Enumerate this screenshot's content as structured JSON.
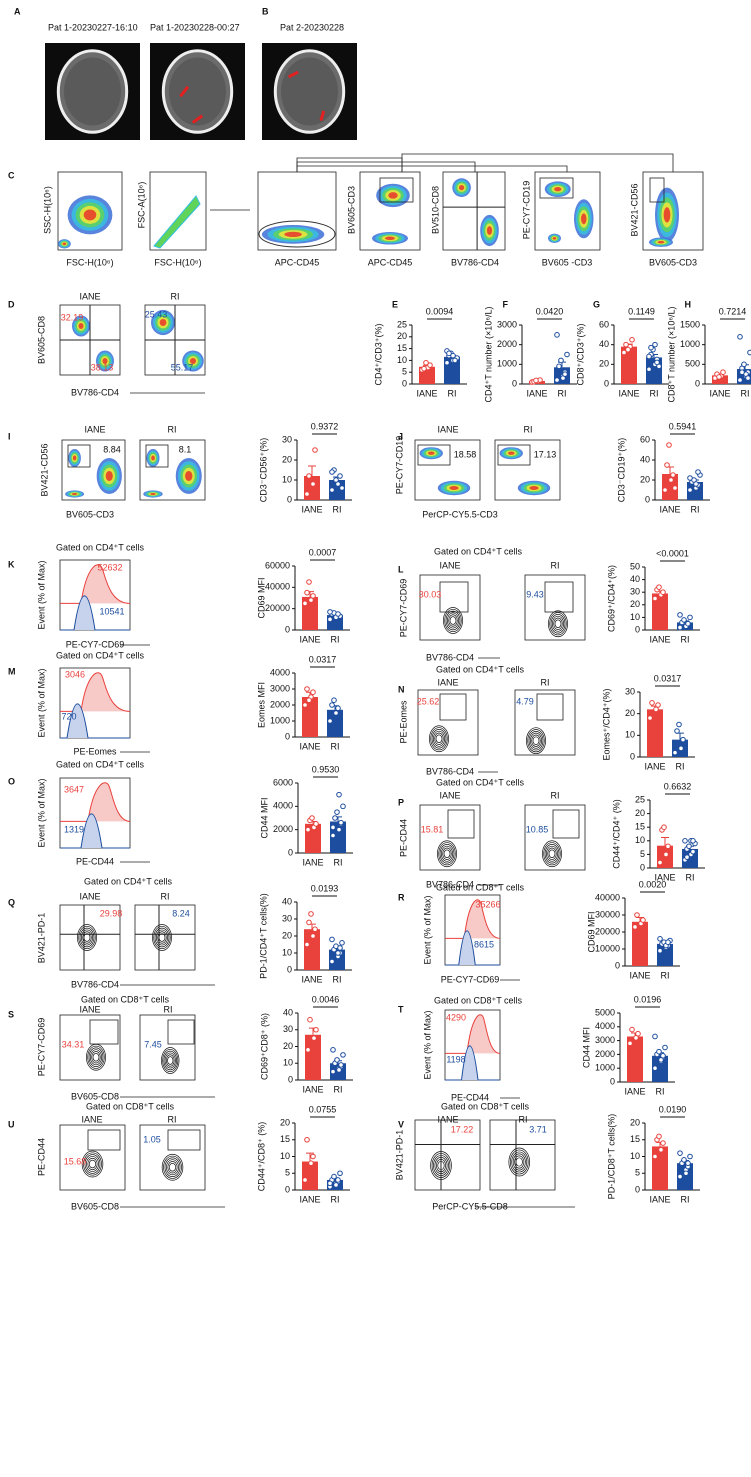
{
  "panels": {
    "A": [
      "A",
      "Pat 1-20230227-16:10",
      "Pat 1-20230228-00:27"
    ],
    "B": [
      "B",
      "Pat 2-20230228"
    ],
    "C": [
      "C",
      "SSC-H(10⁶)",
      "FSC-H(10⁶)",
      "FSC-A(10⁶)",
      "FSC-H(10⁶)",
      "APC-CD45",
      "BV605-CD3",
      "APC-CD45",
      "BV510-CD8",
      "BV786-CD4",
      "PE-CY7-CD19",
      "BV605 -CD3",
      "BV421-CD56",
      "BV605-CD3"
    ],
    "D": [
      "D",
      "IANE",
      "RI",
      "BV605-CD8",
      "BV786-CD4",
      "32.19",
      "38.13",
      "25.43",
      "55.17"
    ],
    "I": [
      "I",
      "IANE",
      "RI",
      "8.84",
      "8.1",
      "BV421-CD56",
      "BV605-CD3"
    ],
    "J": [
      "J",
      "IANE",
      "RI",
      "18.58",
      "17.13",
      "PE-CY7-CD19",
      "PerCP-CY5.5-CD3"
    ],
    "K": [
      "K",
      "Gated on CD4⁺T cells",
      "52632",
      "10541",
      "Event (% of Max)",
      "PE-CY7-CD69"
    ],
    "L": [
      "L",
      "Gated on CD4⁺T cells",
      "IANE",
      "RI",
      "30.03",
      "9.43",
      "PE-CY7-CD69",
      "BV786-CD4"
    ],
    "M": [
      "M",
      "Gated on CD4⁺T cells",
      "3046",
      "720",
      "Event (% of Max)",
      "PE-Eomes"
    ],
    "N": [
      "N",
      "Gated on CD4⁺T cells",
      "IANE",
      "RI",
      "25.62",
      "4.79",
      "PE-Eomes",
      "BV786-CD4"
    ],
    "O": [
      "O",
      "Gated on CD4⁺T cells",
      "3647",
      "1319",
      "Event (% of Max)",
      "PE-CD44"
    ],
    "P": [
      "P",
      "Gated on CD4⁺T cells",
      "IANE",
      "RI",
      "15.81",
      "10.85",
      "PE-CD44",
      "BV786-CD4"
    ],
    "Q": [
      "Q",
      "Gated on CD4⁺T cells",
      "IANE",
      "RI",
      "29.98",
      "8.24",
      "BV421-PD-1",
      "BV786-CD4"
    ],
    "R": [
      "R",
      "Gated on CD8⁺T cells",
      "35266",
      "8615",
      "Event (% of Max)",
      "PE-CY7-CD69"
    ],
    "S": [
      "S",
      "Gated on CD8⁺T cells",
      "IANE",
      "RI",
      "34.31",
      "7.45",
      "PE-CY7-CD69",
      "BV605-CD8"
    ],
    "T": [
      "T",
      "Gated on CD8⁺T cells",
      "4290",
      "1198",
      "Event (% of Max)",
      "PE-CD44"
    ],
    "U": [
      "U",
      "Gated on CD8⁺T cells",
      "IANE",
      "RI",
      "15.68",
      "1.05",
      "PE-CD44",
      "BV605-CD8"
    ],
    "V": [
      "V",
      "Gated on CD8⁺T cells",
      "IANE",
      "RI",
      "17.22",
      "3.71",
      "BV421-PD-1",
      "PerCP-CY5.5-CD8"
    ]
  },
  "chart_data": [
    {
      "type": "bar",
      "panel": "E",
      "categories": [
        "IANE",
        "RI"
      ],
      "ylabel": "CD4⁺/CD3⁺(%)",
      "p_value": "0.0094",
      "colors": [
        "#e9423d",
        "#1d4d9e"
      ],
      "values": [
        7.3,
        11.5
      ],
      "errors": [
        0.6,
        0.5
      ],
      "points": [
        [
          6,
          7,
          8,
          6.5,
          9
        ],
        [
          9,
          10,
          11,
          12,
          13,
          11,
          14,
          12,
          10,
          13
        ]
      ],
      "ylim": [
        0,
        25
      ],
      "yticks": [
        0,
        5,
        10,
        15,
        20,
        25
      ]
    },
    {
      "type": "bar",
      "panel": "F",
      "categories": [
        "IANE",
        "RI"
      ],
      "ylabel": "CD4⁺T number (×10⁶/L)",
      "p_value": "0.0420",
      "colors": [
        "#e9423d",
        "#1d4d9e"
      ],
      "values": [
        150,
        850
      ],
      "errors": [
        20,
        260
      ],
      "points": [
        [
          100,
          150,
          200,
          120,
          180
        ],
        [
          200,
          400,
          600,
          900,
          1200,
          1500,
          2500,
          300,
          500
        ]
      ],
      "ylim": [
        0,
        3000
      ],
      "yticks": [
        0,
        1000,
        2000,
        3000
      ]
    },
    {
      "type": "bar",
      "panel": "G",
      "categories": [
        "IANE",
        "RI"
      ],
      "ylabel": "CD8⁺/CD3⁺(%)",
      "p_value": "0.1149",
      "colors": [
        "#e9423d",
        "#1d4d9e"
      ],
      "values": [
        38,
        27
      ],
      "errors": [
        2.5,
        3
      ],
      "points": [
        [
          32,
          38,
          45,
          40,
          35
        ],
        [
          15,
          20,
          25,
          30,
          35,
          18,
          28,
          40,
          22,
          37
        ]
      ],
      "ylim": [
        0,
        60
      ],
      "yticks": [
        0,
        20,
        40,
        60
      ]
    },
    {
      "type": "bar",
      "panel": "H",
      "categories": [
        "IANE",
        "RI"
      ],
      "ylabel": "CD8⁺T number (×10⁶/L)",
      "p_value": "0.7214",
      "colors": [
        "#e9423d",
        "#1d4d9e"
      ],
      "values": [
        220,
        380
      ],
      "errors": [
        30,
        110
      ],
      "points": [
        [
          150,
          200,
          300,
          250,
          180
        ],
        [
          100,
          200,
          300,
          400,
          500,
          800,
          1200,
          250,
          150,
          300
        ]
      ],
      "ylim": [
        0,
        1500
      ],
      "yticks": [
        0,
        500,
        1000,
        1500
      ]
    },
    {
      "type": "bar",
      "categories": [
        "IANE",
        "RI"
      ],
      "ylabel": "CD3⁻CD56⁺(%)",
      "p_value": "0.9372",
      "colors": [
        "#e9423d",
        "#1d4d9e"
      ],
      "values": [
        12,
        10
      ],
      "errors": [
        5,
        1.5
      ],
      "points": [
        [
          3,
          8,
          25,
          12
        ],
        [
          5,
          8,
          12,
          15,
          10,
          6,
          14
        ]
      ],
      "ylim": [
        0,
        30
      ],
      "yticks": [
        0,
        10,
        20,
        30
      ]
    },
    {
      "type": "bar",
      "categories": [
        "IANE",
        "RI"
      ],
      "ylabel": "CD3⁻CD19⁺(%)",
      "p_value": "0.5941",
      "colors": [
        "#e9423d",
        "#1d4d9e"
      ],
      "values": [
        26,
        18
      ],
      "errors": [
        7,
        2
      ],
      "points": [
        [
          10,
          20,
          25,
          35,
          55,
          12
        ],
        [
          10,
          12,
          15,
          18,
          20,
          25,
          22,
          16,
          28
        ]
      ],
      "ylim": [
        0,
        60
      ],
      "yticks": [
        0,
        20,
        40,
        60
      ]
    },
    {
      "type": "bar",
      "categories": [
        "IANE",
        "RI"
      ],
      "ylabel": "CD69 MFI",
      "p_value": "0.0007",
      "colors": [
        "#e9423d",
        "#1d4d9e"
      ],
      "values": [
        31000,
        14000
      ],
      "errors": [
        5000,
        800
      ],
      "points": [
        [
          25000,
          28000,
          32000,
          35000,
          45000
        ],
        [
          10000,
          12000,
          14000,
          15000,
          16000,
          13000,
          17000,
          12000,
          15000
        ]
      ],
      "ylim": [
        0,
        60000
      ],
      "yticks": [
        0,
        20000,
        40000,
        60000
      ]
    },
    {
      "type": "bar",
      "categories": [
        "IANE",
        "RI"
      ],
      "ylabel": "CD69⁺/CD4⁺(%)",
      "p_value": "<0.0001",
      "colors": [
        "#e9423d",
        "#1d4d9e"
      ],
      "values": [
        29,
        6
      ],
      "errors": [
        2,
        1.2
      ],
      "points": [
        [
          25,
          28,
          30,
          32,
          34
        ],
        [
          2,
          4,
          5,
          6,
          8,
          10,
          12,
          3,
          5
        ]
      ],
      "ylim": [
        0,
        50
      ],
      "yticks": [
        0,
        10,
        20,
        30,
        40,
        50
      ]
    },
    {
      "type": "bar",
      "categories": [
        "IANE",
        "RI"
      ],
      "ylabel": "Eomes MFI",
      "p_value": "0.0317",
      "colors": [
        "#e9423d",
        "#1d4d9e"
      ],
      "values": [
        2500,
        1700
      ],
      "errors": [
        300,
        250
      ],
      "points": [
        [
          2000,
          2500,
          2800,
          3000,
          2300
        ],
        [
          1000,
          1500,
          1800,
          2000,
          2300
        ]
      ],
      "ylim": [
        0,
        4000
      ],
      "yticks": [
        0,
        1000,
        2000,
        3000,
        4000
      ]
    },
    {
      "type": "bar",
      "categories": [
        "IANE",
        "RI"
      ],
      "ylabel": "Eomes⁺/CD4⁺(%)",
      "p_value": "0.0317",
      "colors": [
        "#e9423d",
        "#1d4d9e"
      ],
      "values": [
        22,
        8
      ],
      "errors": [
        1.5,
        3
      ],
      "points": [
        [
          18,
          22,
          24,
          25
        ],
        [
          2,
          4,
          8,
          12,
          15
        ]
      ],
      "ylim": [
        0,
        30
      ],
      "yticks": [
        0,
        10,
        20,
        30
      ]
    },
    {
      "type": "bar",
      "categories": [
        "IANE",
        "RI"
      ],
      "ylabel": "CD44 MFI",
      "p_value": "0.9530",
      "colors": [
        "#e9423d",
        "#1d4d9e"
      ],
      "values": [
        2500,
        2700
      ],
      "errors": [
        200,
        400
      ],
      "points": [
        [
          2000,
          2200,
          2500,
          2800,
          3000
        ],
        [
          1500,
          2000,
          2500,
          3000,
          3500,
          4000,
          2200,
          5000,
          2600
        ]
      ],
      "ylim": [
        0,
        6000
      ],
      "yticks": [
        0,
        2000,
        4000,
        6000
      ]
    },
    {
      "type": "bar",
      "categories": [
        "IANE",
        "RI"
      ],
      "ylabel": "CD44⁺/CD4⁺ (%)",
      "p_value": "0.6632",
      "colors": [
        "#e9423d",
        "#1d4d9e"
      ],
      "values": [
        8.2,
        7
      ],
      "errors": [
        3,
        1
      ],
      " points": null,
      "points": [
        [
          2,
          5,
          8,
          14,
          15
        ],
        [
          3,
          5,
          6,
          7,
          8,
          9,
          10,
          10,
          10,
          4
        ]
      ],
      "ylim": [
        0,
        25
      ],
      "yticks": [
        0,
        5,
        10,
        15,
        20,
        25
      ]
    },
    {
      "type": "bar",
      "categories": [
        "IANE",
        "RI"
      ],
      "ylabel": "PD-1/CD4⁺T cells(%)",
      "p_value": "0.0193",
      "colors": [
        "#e9423d",
        "#1d4d9e"
      ],
      "values": [
        24,
        12
      ],
      "errors": [
        3,
        1.5
      ],
      "points": [
        [
          15,
          20,
          24,
          28,
          33
        ],
        [
          5,
          8,
          10,
          12,
          14,
          16,
          18,
          10,
          13
        ]
      ],
      "ylim": [
        0,
        40
      ],
      "yticks": [
        0,
        10,
        20,
        30,
        40
      ]
    },
    {
      "type": "bar",
      "categories": [
        "IANE",
        "RI"
      ],
      "ylabel": "CD69 MFI",
      "p_value": "0.0020",
      "colors": [
        "#e9423d",
        "#1d4d9e"
      ],
      "values": [
        26000,
        13000
      ],
      "errors": [
        2500,
        800
      ],
      "points": [
        [
          23000,
          25000,
          27000,
          30000
        ],
        [
          9000,
          11000,
          12000,
          13000,
          14000,
          15000,
          16000,
          12000,
          14000
        ]
      ],
      "ylim": [
        0,
        40000
      ],
      "yticks": [
        0,
        10000,
        20000,
        30000,
        40000
      ]
    },
    {
      "type": "bar",
      "categories": [
        "IANE",
        "RI"
      ],
      "ylabel": "CD69⁺CD8⁺ (%)",
      "p_value": "0.0046",
      "colors": [
        "#e9423d",
        "#1d4d9e"
      ],
      "values": [
        27,
        10
      ],
      "errors": [
        4,
        1.5
      ],
      "points": [
        [
          18,
          25,
          30,
          36
        ],
        [
          5,
          7,
          8,
          10,
          12,
          15,
          18,
          6,
          9
        ]
      ],
      "ylim": [
        0,
        40
      ],
      "yticks": [
        0,
        10,
        20,
        30,
        40
      ]
    },
    {
      "type": "bar",
      "categories": [
        "IANE",
        "RI"
      ],
      "ylabel": "CD44 MFI",
      "p_value": "0.0196",
      "colors": [
        "#e9423d",
        "#1d4d9e"
      ],
      "values": [
        3300,
        1900
      ],
      "errors": [
        250,
        220
      ],
      "points": [
        [
          2800,
          3200,
          3500,
          3800
        ],
        [
          1000,
          1500,
          1800,
          2000,
          2200,
          2500,
          3300,
          1600,
          1900
        ]
      ],
      "ylim": [
        0,
        5000
      ],
      "yticks": [
        0,
        1000,
        2000,
        3000,
        4000,
        5000
      ]
    },
    {
      "type": "bar",
      "categories": [
        "IANE",
        "RI"
      ],
      "ylabel": "CD44⁺/CD8⁺ (%)",
      "p_value": "0.0755",
      "colors": [
        "#e9423d",
        "#1d4d9e"
      ],
      "values": [
        8.5,
        3
      ],
      "errors": [
        2.5,
        0.5
      ],
      "points": [
        [
          3,
          8,
          10,
          15
        ],
        [
          1,
          2,
          2.5,
          3,
          4,
          5,
          2,
          1.5,
          3
        ]
      ],
      "ylim": [
        0,
        20
      ],
      "yticks": [
        0,
        5,
        10,
        15,
        20
      ]
    },
    {
      "type": "bar",
      "categories": [
        "IANE",
        "RI"
      ],
      "ylabel": "PD-1/CD8⁺T cells(%)",
      "p_value": "0.0190",
      "colors": [
        "#e9423d",
        "#1d4d9e"
      ],
      "values": [
        13,
        8
      ],
      "errors": [
        1.2,
        0.8
      ],
      "points": [
        [
          10,
          12,
          14,
          15,
          16
        ],
        [
          4,
          6,
          7,
          8,
          9,
          10,
          11,
          5,
          8
        ]
      ],
      "ylim": [
        0,
        20
      ],
      "yticks": [
        0,
        5,
        10,
        15,
        20
      ]
    }
  ]
}
